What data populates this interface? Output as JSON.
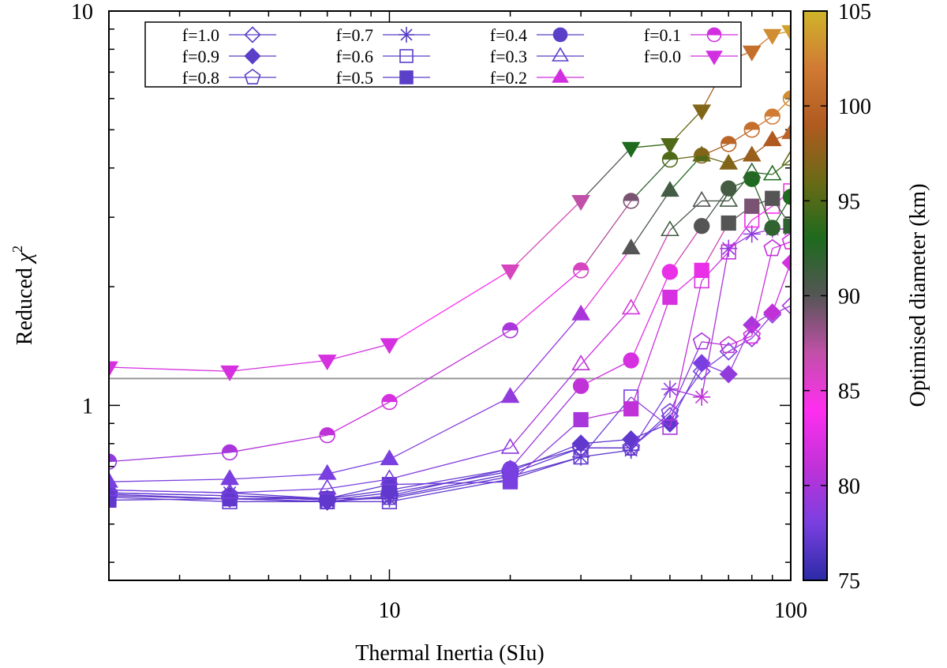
{
  "chart_data": {
    "type": "line",
    "title": "",
    "xlabel": "Thermal Inertia (SIu)",
    "ylabel": "Reduced χ²",
    "ylabel_main": "Reduced ",
    "ylabel_sym": "χ",
    "ylabel_sup": "2",
    "x_scale": "log",
    "y_scale": "log",
    "xlim": [
      2,
      100
    ],
    "ylim": [
      0.36,
      10
    ],
    "x_ticks": [
      {
        "value": 10,
        "label": "10"
      },
      {
        "value": 100,
        "label": "100"
      }
    ],
    "y_ticks": [
      {
        "value": 1,
        "label": "1"
      },
      {
        "value": 10,
        "label": "10"
      }
    ],
    "reference_line": {
      "y": 1.17,
      "color": "#999999"
    },
    "legend_position": "top-left",
    "colorbar": {
      "label": "Optimised diameter (km)",
      "range": [
        75,
        105
      ],
      "ticks": [
        75,
        80,
        85,
        90,
        95,
        100,
        105
      ],
      "colormap": [
        "#2b2ba6",
        "#7a3fe0",
        "#c032d8",
        "#ff2ef0",
        "#c050a8",
        "#555555",
        "#1e6a1e",
        "#6a6a16",
        "#b05a20",
        "#d07a34",
        "#d0b42a"
      ]
    },
    "x": [
      2,
      4,
      7,
      10,
      20,
      30,
      40,
      50,
      60,
      70,
      80,
      90,
      100
    ],
    "series": [
      {
        "name": "f=1.0",
        "marker": "diamond-open",
        "values": [
          0.59,
          0.58,
          0.57,
          0.59,
          0.69,
          0.78,
          0.78,
          0.94,
          1.22,
          1.37,
          1.48,
          1.7,
          1.79
        ],
        "diameters": [
          77,
          77,
          77,
          77,
          77,
          77,
          78,
          78,
          78,
          78,
          79,
          79,
          80
        ]
      },
      {
        "name": "f=0.9",
        "marker": "diamond",
        "values": [
          0.6,
          0.59,
          0.575,
          0.6,
          0.68,
          0.8,
          0.82,
          0.9,
          1.28,
          1.2,
          1.6,
          1.72,
          2.3
        ],
        "diameters": [
          77,
          77,
          77,
          77,
          77,
          77,
          77,
          77,
          78,
          79,
          80,
          81,
          82
        ]
      },
      {
        "name": "f=0.8",
        "marker": "pentagon-open",
        "values": [
          0.595,
          0.58,
          0.57,
          0.585,
          0.67,
          0.78,
          0.78,
          0.96,
          1.45,
          1.42,
          1.5,
          2.5,
          2.6
        ],
        "diameters": [
          77,
          77,
          77,
          77,
          77,
          77,
          77,
          78,
          80,
          81,
          82,
          81,
          82
        ]
      },
      {
        "name": "f=0.7",
        "marker": "asterisk",
        "values": [
          0.61,
          0.6,
          0.58,
          0.58,
          0.66,
          0.74,
          0.77,
          1.1,
          1.05,
          2.5,
          2.72,
          2.8,
          2.8
        ],
        "diameters": [
          77,
          77,
          77,
          77,
          77,
          77,
          77,
          79,
          81,
          79,
          79,
          80,
          81
        ]
      },
      {
        "name": "f=0.6",
        "marker": "square-open",
        "values": [
          0.585,
          0.57,
          0.57,
          0.57,
          0.65,
          0.74,
          1.05,
          0.88,
          2.07,
          2.45,
          2.95,
          3.2,
          3.5
        ],
        "diameters": [
          77,
          77,
          77,
          77,
          77,
          77,
          78,
          80,
          82,
          81,
          83,
          84,
          85
        ]
      },
      {
        "name": "f=0.5",
        "marker": "square",
        "values": [
          0.575,
          0.58,
          0.58,
          0.63,
          0.64,
          0.92,
          0.98,
          1.88,
          2.2,
          2.9,
          3.2,
          3.35,
          2.85
        ],
        "diameters": [
          77,
          77,
          77,
          77,
          78,
          80,
          81,
          82,
          83,
          90,
          89,
          90,
          92
        ]
      },
      {
        "name": "f=0.4",
        "marker": "circle",
        "values": [
          0.6,
          0.59,
          0.58,
          0.61,
          0.69,
          1.12,
          1.3,
          2.18,
          2.85,
          3.55,
          3.75,
          2.82,
          3.38
        ],
        "diameters": [
          77,
          77,
          77,
          77,
          78,
          81,
          82,
          83,
          90,
          91,
          93,
          92,
          93
        ]
      },
      {
        "name": "f=0.3",
        "marker": "triangle-open",
        "values": [
          0.61,
          0.6,
          0.615,
          0.65,
          0.78,
          1.27,
          1.76,
          2.78,
          3.3,
          3.3,
          3.9,
          3.85,
          4.2
        ],
        "diameters": [
          78,
          78,
          78,
          78,
          79,
          81,
          82,
          91,
          90,
          91,
          92,
          93,
          96
        ]
      },
      {
        "name": "f=0.2",
        "marker": "triangle",
        "values": [
          0.64,
          0.65,
          0.67,
          0.73,
          1.05,
          1.7,
          2.5,
          3.5,
          4.3,
          4.1,
          4.3,
          4.7,
          4.9
        ],
        "diameters": [
          78,
          78,
          78,
          78,
          79,
          80,
          90,
          91,
          95,
          97,
          98,
          99,
          100
        ]
      },
      {
        "name": "f=0.1",
        "marker": "circle-half",
        "values": [
          0.72,
          0.76,
          0.84,
          1.02,
          1.55,
          2.2,
          3.3,
          4.2,
          4.3,
          4.6,
          5.0,
          5.4,
          6.0
        ],
        "diameters": [
          79,
          80,
          81,
          82,
          80,
          86,
          89,
          95,
          97,
          100,
          101,
          102,
          103
        ]
      },
      {
        "name": "f=0.0",
        "marker": "triangle-down",
        "values": [
          1.25,
          1.22,
          1.3,
          1.43,
          2.2,
          3.3,
          4.5,
          4.6,
          5.6,
          7.5,
          7.9,
          8.7,
          8.9
        ],
        "diameters": [
          82,
          82,
          82,
          82,
          86,
          87,
          93,
          95,
          97,
          100,
          101,
          103,
          104
        ]
      }
    ]
  }
}
